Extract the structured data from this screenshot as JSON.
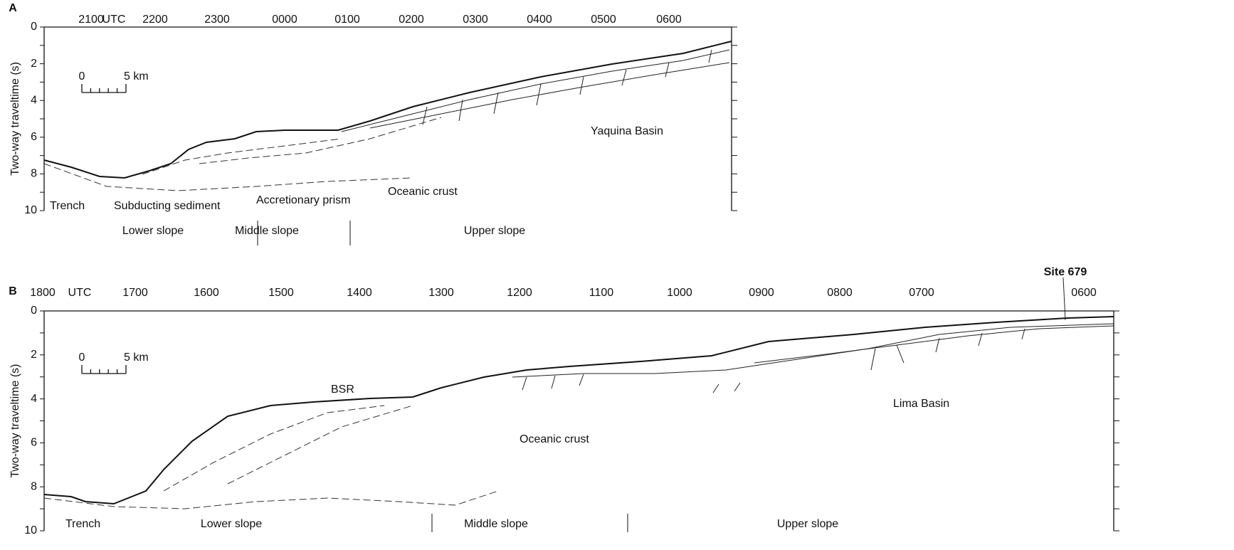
{
  "panels": [
    {
      "label": "A",
      "time_labels": [
        "2100",
        "UTC",
        "2200",
        "2300",
        "0000",
        "0100",
        "0200",
        "0300",
        "0400",
        "0500",
        "0600"
      ],
      "axis_label": "Two-way traveltime (s)",
      "yticks": [
        0,
        2,
        4,
        6,
        8,
        10
      ],
      "scale": {
        "zero": "0",
        "length": "5 km"
      },
      "annotations": [
        "Trench",
        "Subducting sediment",
        "Accretionary prism",
        "Oceanic crust",
        "Yaquina Basin"
      ],
      "zones": [
        "Lower slope",
        "Middle slope",
        "Upper slope"
      ]
    },
    {
      "label": "B",
      "site": "Site 679",
      "time_labels": [
        "1800",
        "UTC",
        "1700",
        "1600",
        "1500",
        "1400",
        "1300",
        "1200",
        "1100",
        "1000",
        "0900",
        "0800",
        "0700",
        "0600"
      ],
      "axis_label": "Two-way traveltime (s)",
      "yticks": [
        0,
        2,
        4,
        6,
        8,
        10
      ],
      "scale": {
        "zero": "0",
        "length": "5 km"
      },
      "annotations": [
        "BSR",
        "Oceanic crust",
        "Lima Basin",
        "Trench"
      ],
      "zones": [
        "Lower slope",
        "Middle slope",
        "Upper slope"
      ]
    }
  ]
}
